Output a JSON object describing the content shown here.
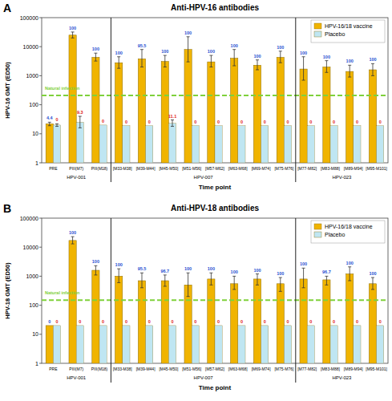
{
  "chart_data": [
    {
      "type": "bar",
      "panel": "A",
      "title": "Anti-HPV-16 antibodies",
      "y_label": "HPV-16 GMT (ED50)",
      "x_label": "Time point",
      "log": "y",
      "grid": false,
      "legend": "upper right",
      "ylim": [
        1,
        100000
      ],
      "yticks": [
        1,
        10,
        100,
        1000,
        10000,
        100000
      ],
      "categories": [
        "PRE",
        "PIII(M7)",
        "PIII(M18)",
        "[M33-M38]",
        "[M39-M44]",
        "[M45-M50]",
        "[M51-M56]",
        "[M57-M62]",
        "[M63-M68]",
        "[M69-M74]",
        "[M75-M76]",
        "[M77-M82]",
        "[M83-M88]",
        "[M89-M94]",
        "[M95-M101]"
      ],
      "groups": [
        {
          "label": "HPV-001",
          "start": 0,
          "end": 2
        },
        {
          "label": "HPV-007",
          "start": 3,
          "end": 10
        },
        {
          "label": "HPV-023",
          "start": 11,
          "end": 14
        }
      ],
      "reference_line": {
        "value": 210,
        "label": "Natural infection",
        "color": "#7fd13b"
      },
      "series": [
        {
          "name": "HPV-16/18 vaccine",
          "color": "#f0b400",
          "values": [
            22,
            25000,
            4300,
            2800,
            3800,
            3100,
            8000,
            3000,
            4000,
            2300,
            4300,
            1700,
            2000,
            1400,
            1600
          ],
          "ci_lower": [
            19,
            20000,
            3200,
            1800,
            2000,
            2000,
            3000,
            2000,
            2200,
            1600,
            2800,
            700,
            1300,
            900,
            1000
          ],
          "ci_upper": [
            25,
            32000,
            6000,
            4500,
            8000,
            5000,
            22000,
            5000,
            8000,
            3500,
            7000,
            4500,
            3300,
            2300,
            2600
          ],
          "seropositivity": [
            4.4,
            100,
            100,
            100,
            95.5,
            100,
            100,
            100,
            100,
            100,
            100,
            100,
            100,
            100,
            100
          ]
        },
        {
          "name": "Placebo",
          "color": "#bfe6f2",
          "values": [
            20,
            25,
            20,
            19,
            19,
            23,
            19,
            19,
            19,
            19,
            19,
            19,
            19,
            19,
            19
          ],
          "ci_lower": [
            18,
            16,
            null,
            null,
            null,
            18,
            null,
            null,
            null,
            null,
            null,
            null,
            null,
            null,
            null
          ],
          "ci_upper": [
            22,
            40,
            null,
            null,
            null,
            30,
            null,
            null,
            null,
            null,
            null,
            null,
            null,
            null,
            null
          ],
          "seropositivity": [
            0,
            9.3,
            0,
            0,
            0,
            11.1,
            0,
            0,
            0,
            0,
            0,
            0,
            0,
            0,
            0
          ]
        }
      ]
    },
    {
      "type": "bar",
      "panel": "B",
      "title": "Anti-HPV-18 antibodies",
      "y_label": "HPV-18 GMT (ED50)",
      "x_label": "Time point",
      "log": "y",
      "grid": false,
      "legend": "upper right",
      "ylim": [
        1,
        100000
      ],
      "yticks": [
        1,
        10,
        100,
        1000,
        10000,
        100000
      ],
      "categories": [
        "PRE",
        "PIII(M7)",
        "PIII(M18)",
        "[M33-M38]",
        "[M39-M44]",
        "[M45-M50]",
        "[M51-M56]",
        "[M57-M62]",
        "[M63-M68]",
        "[M69-M74]",
        "[M75-M76]",
        "[M77-M82]",
        "[M83-M88]",
        "[M89-M94]",
        "[M95-M101]"
      ],
      "groups": [
        {
          "label": "HPV-001",
          "start": 0,
          "end": 2
        },
        {
          "label": "HPV-007",
          "start": 3,
          "end": 10
        },
        {
          "label": "HPV-023",
          "start": 11,
          "end": 14
        }
      ],
      "reference_line": {
        "value": 150,
        "label": "Natural infection",
        "color": "#7fd13b"
      },
      "series": [
        {
          "name": "HPV-16/18 vaccine",
          "color": "#f0b400",
          "values": [
            20,
            17000,
            1600,
            1000,
            700,
            700,
            500,
            800,
            550,
            800,
            550,
            800,
            750,
            1200,
            550
          ],
          "ci_lower": [
            null,
            13000,
            1100,
            600,
            400,
            450,
            200,
            500,
            350,
            500,
            300,
            400,
            500,
            700,
            350
          ],
          "ci_upper": [
            null,
            23000,
            2300,
            1800,
            1300,
            1100,
            1300,
            1300,
            1000,
            1200,
            900,
            1900,
            1000,
            2100,
            900
          ],
          "seropositivity": [
            0,
            100,
            100,
            100,
            95.5,
            96.7,
            100,
            100,
            100,
            100,
            100,
            100,
            96.7,
            100,
            100
          ]
        },
        {
          "name": "Placebo",
          "color": "#bfe6f2",
          "values": [
            20,
            20,
            20,
            20,
            20,
            20,
            20,
            20,
            20,
            20,
            20,
            20,
            20,
            20,
            20
          ],
          "ci_lower": [
            null,
            null,
            null,
            null,
            null,
            null,
            null,
            null,
            null,
            null,
            null,
            null,
            null,
            null,
            null
          ],
          "ci_upper": [
            null,
            null,
            null,
            null,
            null,
            null,
            null,
            null,
            null,
            null,
            null,
            null,
            null,
            null,
            null
          ],
          "seropositivity": [
            0,
            0,
            0,
            0,
            0,
            0,
            0,
            0,
            0,
            0,
            0,
            0,
            0,
            0,
            0
          ]
        }
      ]
    }
  ]
}
